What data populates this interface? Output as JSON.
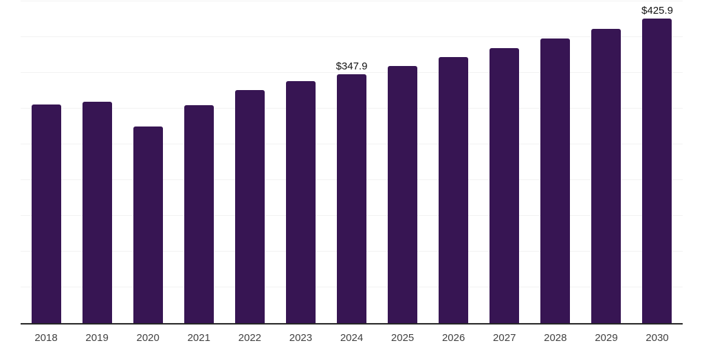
{
  "chart_data": {
    "type": "bar",
    "categories": [
      "2018",
      "2019",
      "2020",
      "2021",
      "2022",
      "2023",
      "2024",
      "2025",
      "2026",
      "2027",
      "2028",
      "2029",
      "2030"
    ],
    "values": [
      306,
      310,
      275,
      305,
      326,
      338,
      347.9,
      359.9,
      372.3,
      385.1,
      398.3,
      411.9,
      425.9
    ],
    "data_labels": [
      {
        "category": "2024",
        "text": "$347.9"
      },
      {
        "category": "2030",
        "text": "$425.9"
      }
    ],
    "xlabel": "",
    "ylabel": "",
    "ylim": [
      0,
      450
    ],
    "grid_step": 50,
    "grid": true,
    "legend": "none",
    "colors": {
      "bar": "#371553",
      "gridline": "#f2f2f2",
      "axis_line": "#262626",
      "data_label": "#111111",
      "tick_label": "#404040",
      "background": "#ffffff"
    }
  }
}
